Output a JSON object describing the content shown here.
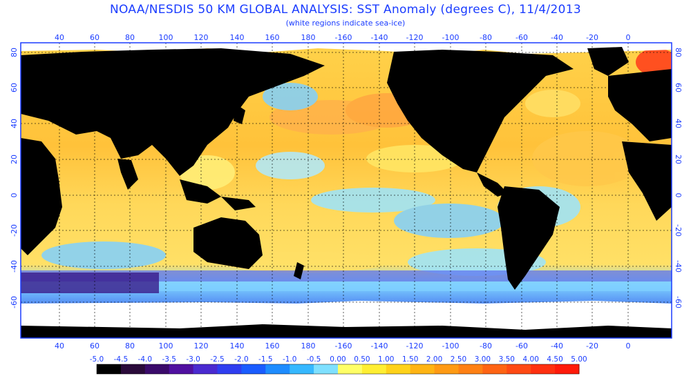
{
  "title": "NOAA/NESDIS 50 KM GLOBAL ANALYSIS: SST Anomaly (degrees C), 11/4/2013",
  "subtitle": "(white regions indicate sea-ice)",
  "map": {
    "lon_ticks": [
      "40",
      "60",
      "80",
      "100",
      "120",
      "140",
      "160",
      "180",
      "-160",
      "-140",
      "-120",
      "-100",
      "-80",
      "-60",
      "-40",
      "-20",
      "0"
    ],
    "lat_ticks_left": [
      "80",
      "60",
      "40",
      "20",
      "0",
      "-20",
      "-40",
      "-60"
    ],
    "lat_ticks_right": [
      "80",
      "60",
      "40",
      "20",
      "0",
      "-20",
      "-40",
      "-60"
    ]
  },
  "colorbar": {
    "labels": [
      "-5.0",
      "-4.5",
      "-4.0",
      "-3.5",
      "-3.0",
      "-2.5",
      "-2.0",
      "-1.5",
      "-1.0",
      "-0.5",
      "0.00",
      "0.50",
      "1.00",
      "1.50",
      "2.00",
      "2.50",
      "3.00",
      "3.50",
      "4.00",
      "4.50",
      "5.00"
    ],
    "colors": [
      "#000000",
      "#2a0a3a",
      "#3a0a6a",
      "#5010a0",
      "#4a2ad0",
      "#2f3ef0",
      "#1a5cff",
      "#1e8cff",
      "#36b8ff",
      "#7fe0ff",
      "#ffff66",
      "#ffee33",
      "#ffd21a",
      "#ffb414",
      "#ff9a14",
      "#ff8014",
      "#ff6414",
      "#ff4a14",
      "#ff3010",
      "#ff1a0a"
    ]
  },
  "colors": {
    "frame": "#1a3cff",
    "land": "#000000",
    "ice": "#ffffff",
    "ocean_warm": "#ffc94a",
    "ocean_neutral": "#ffee66",
    "ocean_cool": "#6fd0ff",
    "ocean_cold": "#4d3fd9"
  }
}
